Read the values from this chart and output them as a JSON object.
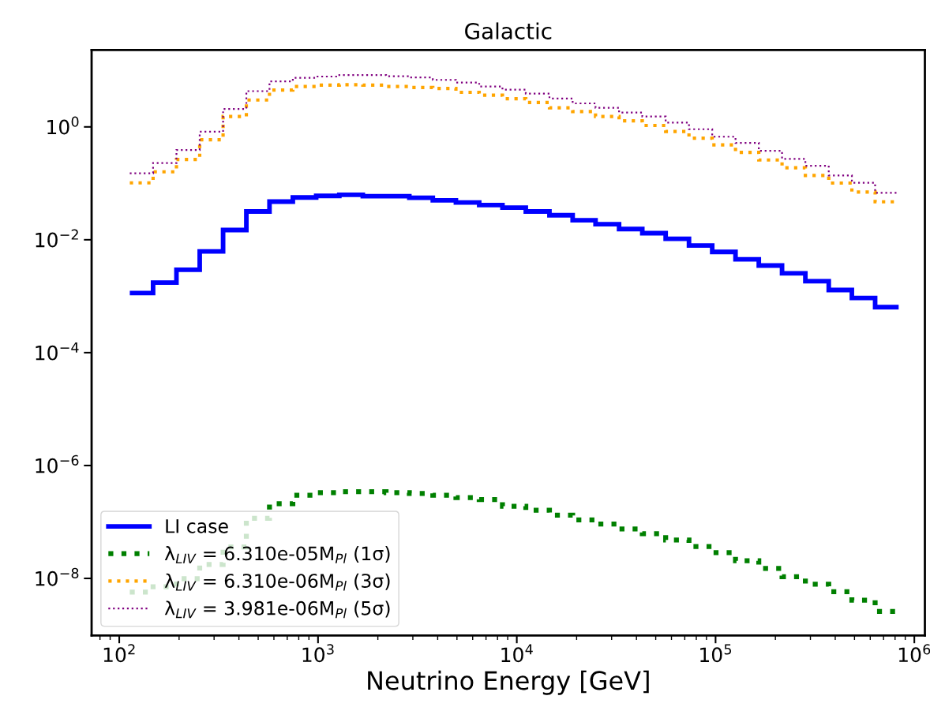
{
  "chart_data": {
    "type": "histogram",
    "title": "Galactic",
    "xlabel": "Neutrino Energy [GeV]",
    "bins": [
      113,
      148,
      194,
      254,
      333,
      436,
      570,
      747,
      979,
      1280,
      1680,
      2200,
      2880,
      3780,
      4940,
      6470,
      8470,
      11100,
      14600,
      19100,
      24900,
      32700,
      42800,
      56100,
      73500,
      96200,
      126000,
      165000,
      216000,
      283000,
      371000,
      485000,
      635000,
      834000
    ],
    "series": [
      {
        "name": "LI case",
        "color": "#0000ff",
        "line_style": "solid",
        "values": [
          0.00114,
          0.00174,
          0.00294,
          0.0062,
          0.0149,
          0.0317,
          0.0474,
          0.0561,
          0.0599,
          0.0627,
          0.0593,
          0.0593,
          0.0554,
          0.0501,
          0.0458,
          0.0411,
          0.0371,
          0.0317,
          0.0272,
          0.0222,
          0.0189,
          0.0155,
          0.0131,
          0.0104,
          0.0079,
          0.0061,
          0.0045,
          0.0035,
          0.00255,
          0.00184,
          0.00129,
          0.00093,
          0.00064
        ]
      },
      {
        "name": "λ$_{LIV}$ = 6.310e-05M$_{Pl}$ (1σ)",
        "color": "#008000",
        "line_style": "dotted",
        "values": [
          5.7e-09,
          7.1e-09,
          9.9e-09,
          1.77e-08,
          3.6e-08,
          1.16e-07,
          2.1e-07,
          2.97e-07,
          3.3e-07,
          3.44e-07,
          3.44e-07,
          3.3e-07,
          3.2e-07,
          2.97e-07,
          2.7e-07,
          2.5e-07,
          1.9e-07,
          1.61e-07,
          1.32e-07,
          1.09e-07,
          9.2e-08,
          7.5e-08,
          6.2e-08,
          4.8e-08,
          3.66e-08,
          2.86e-08,
          2.05e-08,
          1.5e-08,
          1.07e-08,
          7.9e-09,
          5.8e-09,
          4.1e-09,
          2.6e-09
        ]
      },
      {
        "name": "λ$_{LIV}$ = 6.310e-06M$_{Pl}$ (3σ)",
        "color": "#ffa500",
        "line_style": "dotted",
        "values": [
          0.102,
          0.16,
          0.265,
          0.59,
          1.53,
          2.99,
          4.5,
          5.2,
          5.5,
          5.6,
          5.5,
          5.2,
          5.0,
          4.8,
          4.1,
          3.65,
          3.16,
          2.7,
          2.18,
          1.87,
          1.53,
          1.28,
          1.06,
          0.83,
          0.63,
          0.48,
          0.354,
          0.259,
          0.189,
          0.138,
          0.101,
          0.07,
          0.047
        ]
      },
      {
        "name": "λ$_{LIV}$ = 3.981e-06M$_{Pl}$ (5σ)",
        "color": "#800080",
        "line_style": "dotted",
        "values": [
          0.151,
          0.229,
          0.39,
          0.82,
          2.07,
          4.3,
          6.4,
          7.4,
          7.8,
          8.3,
          8.3,
          7.9,
          7.5,
          6.8,
          6.1,
          5.2,
          4.56,
          3.9,
          3.19,
          2.61,
          2.18,
          1.79,
          1.53,
          1.19,
          0.91,
          0.67,
          0.52,
          0.378,
          0.27,
          0.205,
          0.138,
          0.102,
          0.068
        ]
      }
    ],
    "log": "xy",
    "xlim": [
      72.6,
      1130000
    ],
    "ylim": [
      9.7e-10,
      23
    ],
    "xticks": [
      {
        "value": 100,
        "label": "10$^{2}$"
      },
      {
        "value": 1000,
        "label": "10$^{3}$"
      },
      {
        "value": 10000,
        "label": "10$^{4}$"
      },
      {
        "value": 100000,
        "label": "10$^{5}$"
      },
      {
        "value": 1000000,
        "label": "10$^{6}$"
      }
    ],
    "yticks": [
      {
        "value": 1e-08,
        "label": "10$^{−8}$"
      },
      {
        "value": 1e-06,
        "label": "10$^{−6}$"
      },
      {
        "value": 0.0001,
        "label": "10$^{−4}$"
      },
      {
        "value": 0.01,
        "label": "10$^{−2}$"
      },
      {
        "value": 1,
        "label": "10$^{0}$"
      }
    ],
    "grid": false,
    "legend": "bottom left"
  }
}
